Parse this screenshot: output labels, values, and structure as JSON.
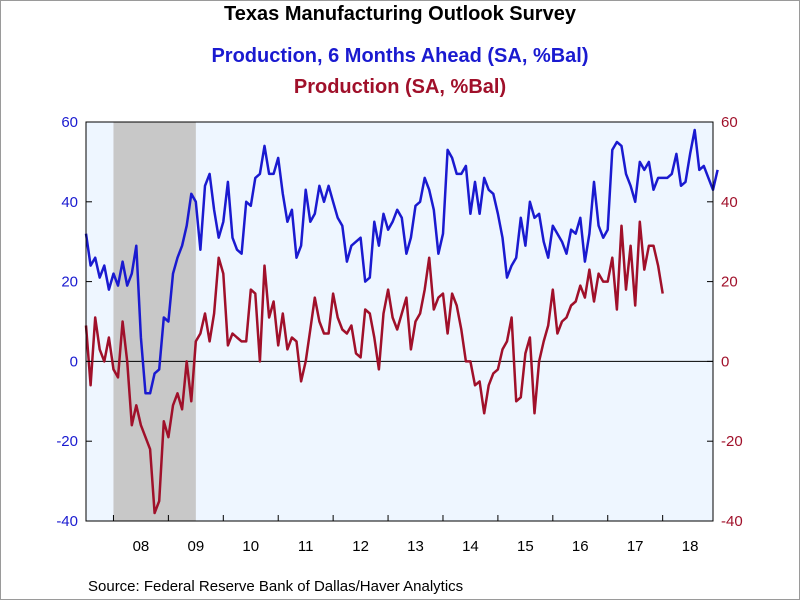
{
  "chart_data": {
    "type": "line",
    "title": "Texas Manufacturing Outlook Survey",
    "source": "Source:  Federal Reserve Bank of Dallas/Haver Analytics",
    "x_labels": [
      "08",
      "09",
      "10",
      "11",
      "12",
      "13",
      "14",
      "15",
      "16",
      "17",
      "18"
    ],
    "x_range": [
      2007.5,
      2018.9167
    ],
    "y_left": {
      "range": [
        -40,
        60
      ],
      "ticks": [
        "60",
        "40",
        "20",
        "0",
        "-20",
        "-40"
      ],
      "color": "#1a1ad0"
    },
    "y_right": {
      "range": [
        -40,
        60
      ],
      "ticks": [
        "60",
        "40",
        "20",
        "0",
        "-20",
        "-40"
      ],
      "color": "#a0102a"
    },
    "recession": {
      "start": 2008.0,
      "end": 2009.5
    },
    "grid": false,
    "colors": {
      "plot_bg": "#eef6ff",
      "recession": "#c8c8c8"
    },
    "series": [
      {
        "name": "Production, 6 Months Ahead (SA, %Bal)",
        "axis": "left",
        "color": "#1a1ad0",
        "start": 2007.5,
        "step": 0.0833333,
        "values": [
          32,
          24,
          26,
          21,
          24,
          18,
          22,
          19,
          25,
          19,
          22,
          29,
          6,
          -8,
          -8,
          -3,
          -2,
          11,
          10,
          22,
          26,
          29,
          34,
          42,
          40,
          28,
          44,
          47,
          38,
          31,
          35,
          45,
          31,
          28,
          27,
          40,
          39,
          46,
          47,
          54,
          47,
          47,
          51,
          42,
          35,
          38,
          26,
          29,
          43,
          35,
          37,
          44,
          40,
          44,
          40,
          36,
          34,
          25,
          29,
          30,
          31,
          20,
          21,
          35,
          29,
          37,
          33,
          35,
          38,
          36,
          27,
          31,
          39,
          40,
          46,
          43,
          38,
          27,
          32,
          53,
          51,
          47,
          47,
          49,
          37,
          45,
          37,
          46,
          43,
          42,
          37,
          31,
          21,
          24,
          26,
          36,
          29,
          40,
          36,
          37,
          30,
          26,
          34,
          32,
          30,
          27,
          33,
          32,
          36,
          25,
          32,
          45,
          34,
          31,
          33,
          53,
          55,
          54,
          47,
          44,
          40,
          50,
          48,
          50,
          43,
          46,
          46,
          46,
          47,
          52,
          44,
          45,
          52,
          58,
          48,
          49,
          46,
          43,
          48
        ]
      },
      {
        "name": "Production (SA, %Bal)",
        "axis": "right",
        "color": "#a0102a",
        "start": 2007.5,
        "step": 0.0833333,
        "values": [
          9,
          -6,
          11,
          3,
          0,
          6,
          -2,
          -4,
          10,
          0,
          -16,
          -11,
          -16,
          -19,
          -22,
          -38,
          -35,
          -15,
          -19,
          -11,
          -8,
          -12,
          0,
          -10,
          5,
          7,
          12,
          5,
          12,
          26,
          22,
          4,
          7,
          6,
          5,
          5,
          18,
          17,
          0,
          24,
          11,
          15,
          4,
          12,
          3,
          6,
          5,
          -5,
          0,
          8,
          16,
          10,
          7,
          7,
          17,
          11,
          8,
          7,
          9,
          2,
          1,
          13,
          12,
          6,
          -2,
          12,
          18,
          11,
          8,
          12,
          16,
          3,
          10,
          12,
          18,
          26,
          13,
          16,
          17,
          7,
          17,
          14,
          8,
          0,
          0,
          -6,
          -5,
          -13,
          -6,
          -3,
          -2,
          3,
          5,
          11,
          -10,
          -9,
          2,
          6,
          -13,
          0,
          5,
          9,
          18,
          7,
          10,
          11,
          14,
          15,
          19,
          16,
          23,
          15,
          22,
          20,
          20,
          26,
          13,
          34,
          18,
          29,
          14,
          35,
          23,
          29,
          29,
          24,
          17
        ]
      }
    ]
  }
}
